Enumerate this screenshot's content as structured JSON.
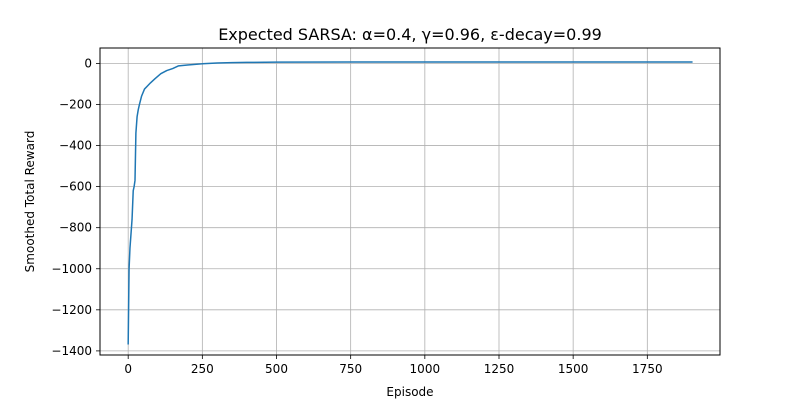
{
  "chart_data": {
    "type": "line",
    "title": "Expected SARSA: α=0.4, γ=0.96, ε-decay=0.99",
    "xlabel": "Episode",
    "ylabel": "Smoothed Total Reward",
    "xlim": [
      -95,
      1995
    ],
    "ylim": [
      -1420,
      75
    ],
    "xticks": [
      0,
      250,
      500,
      750,
      1000,
      1250,
      1500,
      1750
    ],
    "xtick_labels": [
      "0",
      "250",
      "500",
      "750",
      "1000",
      "1250",
      "1500",
      "1750"
    ],
    "yticks": [
      0,
      -200,
      -400,
      -600,
      -800,
      -1000,
      -1200,
      -1400
    ],
    "ytick_labels": [
      "0",
      "−200",
      "−400",
      "−600",
      "−800",
      "−1000",
      "−1200",
      "−1400"
    ],
    "grid": true,
    "series": [
      {
        "color": "#1f77b4",
        "x": [
          0,
          3,
          6,
          10,
          13,
          17,
          20,
          23,
          26,
          30,
          34,
          38,
          45,
          55,
          65,
          75,
          90,
          110,
          130,
          150,
          170,
          200,
          250,
          300,
          350,
          400,
          500,
          750,
          1000,
          1250,
          1500,
          1750,
          1900
        ],
        "y": [
          -1365,
          -1000,
          -900,
          -820,
          -760,
          -620,
          -600,
          -570,
          -340,
          -260,
          -225,
          -200,
          -160,
          -125,
          -110,
          -95,
          -75,
          -50,
          -35,
          -25,
          -12,
          -8,
          -2,
          2,
          4,
          5,
          6,
          7,
          7,
          7,
          7,
          7,
          7
        ]
      }
    ]
  }
}
